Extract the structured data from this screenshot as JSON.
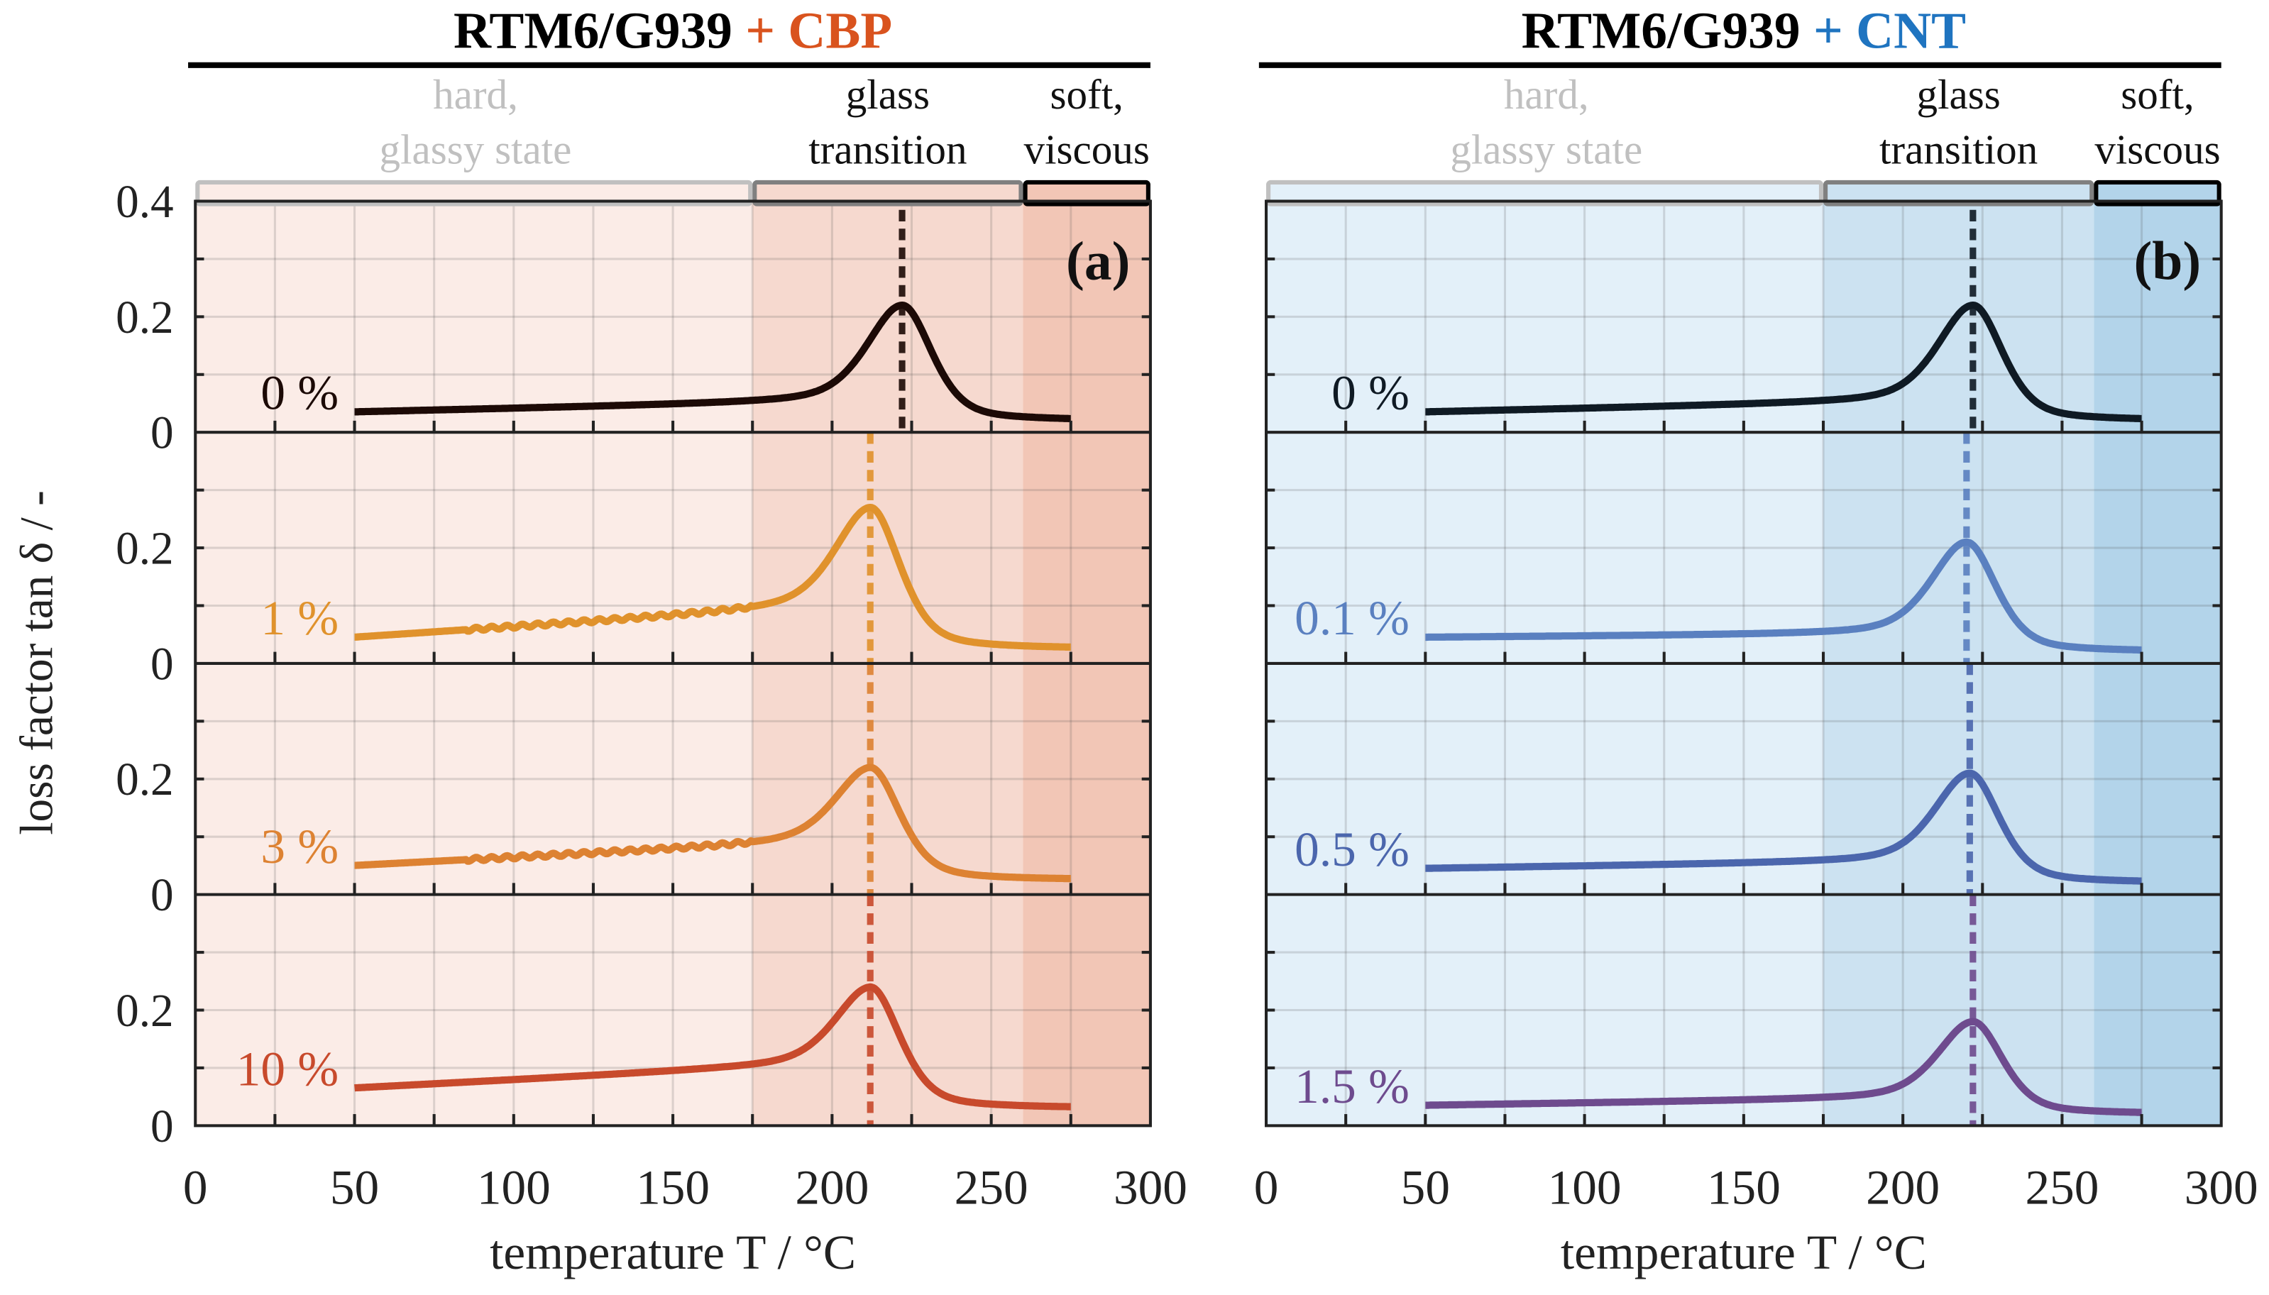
{
  "chart_data": {
    "type": "line",
    "ylabel": "loss factor tan δ / -",
    "xlabel": "temperature  T / °C",
    "xlim": [
      0,
      300
    ],
    "xticks": [
      "0",
      "50",
      "100",
      "150",
      "200",
      "250",
      "300"
    ],
    "row_ylim": [
      0,
      0.4
    ],
    "yticks_top": [
      "0.4",
      "0.2",
      "0"
    ],
    "yticks_other": [
      "0.2",
      "0"
    ],
    "regions": [
      {
        "label_line1": "hard,",
        "label_line2": "glassy state",
        "range": [
          0,
          175
        ],
        "label_color": "#c0c0c0",
        "border_color": "#c0c0c0"
      },
      {
        "label_line1": "glass",
        "label_line2": "transition",
        "range": [
          175,
          260
        ],
        "label_color": "#111111",
        "border_color": "#808080"
      },
      {
        "label_line1": "soft,",
        "label_line2": "viscous",
        "range": [
          260,
          300
        ],
        "label_color": "#111111",
        "border_color": "#000000"
      }
    ],
    "panels": [
      {
        "title_base": "RTM6/G939",
        "title_additive": "+ CBP",
        "additive_color": "#d9531e",
        "panel_label": "(a)",
        "shading": [
          "#fbece7",
          "#f6d9cf",
          "#f2c6b6"
        ],
        "series": [
          {
            "name": "0 %",
            "color": "#1c0a06",
            "base_50": 0.035,
            "base_175": 0.05,
            "peak_T": 222,
            "peak": 0.22,
            "end": 0.02
          },
          {
            "name": "1 %",
            "color": "#e0922c",
            "base_50": 0.045,
            "base_175": 0.09,
            "peak_T": 212,
            "peak": 0.27,
            "end": 0.025
          },
          {
            "name": "3 %",
            "color": "#dd8232",
            "base_50": 0.05,
            "base_175": 0.085,
            "peak_T": 212,
            "peak": 0.22,
            "end": 0.025
          },
          {
            "name": "10 %",
            "color": "#c84a2c",
            "base_50": 0.065,
            "base_175": 0.1,
            "peak_T": 212,
            "peak": 0.24,
            "end": 0.03
          }
        ]
      },
      {
        "title_base": "RTM6/G939",
        "title_additive": "+ CNT",
        "additive_color": "#1f74c0",
        "panel_label": "(b)",
        "shading": [
          "#e3f0f9",
          "#cce2f1",
          "#b3d4ea"
        ],
        "series": [
          {
            "name": "0 %",
            "color": "#0f1a24",
            "base_50": 0.035,
            "base_175": 0.05,
            "peak_T": 222,
            "peak": 0.22,
            "end": 0.02
          },
          {
            "name": "0.1 %",
            "color": "#5a80c0",
            "base_50": 0.045,
            "base_175": 0.05,
            "peak_T": 220,
            "peak": 0.21,
            "end": 0.02
          },
          {
            "name": "0.5 %",
            "color": "#4b66ad",
            "base_50": 0.045,
            "base_175": 0.055,
            "peak_T": 221,
            "peak": 0.21,
            "end": 0.02
          },
          {
            "name": "1.5 %",
            "color": "#6e4b8e",
            "base_50": 0.035,
            "base_175": 0.045,
            "peak_T": 222,
            "peak": 0.18,
            "end": 0.02
          }
        ]
      }
    ]
  }
}
